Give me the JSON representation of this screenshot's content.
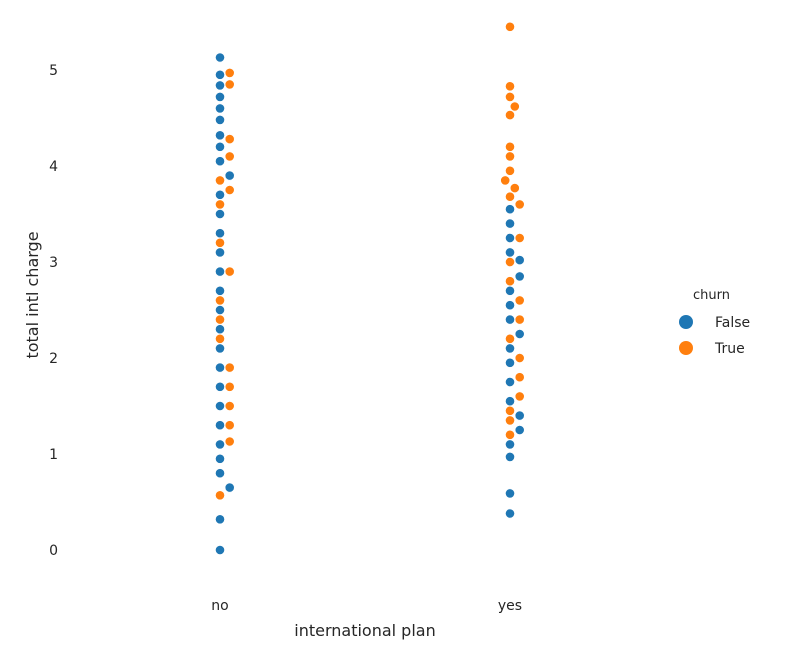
{
  "chart_data": {
    "type": "scatter",
    "subtype": "swarm",
    "title": "",
    "xlabel": "international plan",
    "ylabel": "total intl charge",
    "categories": [
      "no",
      "yes"
    ],
    "ylim": [
      -0.3,
      5.5
    ],
    "yticks": [
      0,
      1,
      2,
      3,
      4,
      5
    ],
    "grid": false,
    "legend": {
      "title": "churn",
      "placement": "right",
      "entries": [
        {
          "label": "False",
          "color": "#1f77b4"
        },
        {
          "label": "True",
          "color": "#ff7f0e"
        }
      ]
    },
    "series": [
      {
        "name": "False",
        "color": "#1f77b4",
        "points": [
          {
            "category": "no",
            "y": 5.13
          },
          {
            "category": "no",
            "y": 4.95
          },
          {
            "category": "no",
            "y": 4.84
          },
          {
            "category": "no",
            "y": 4.72
          },
          {
            "category": "no",
            "y": 4.6
          },
          {
            "category": "no",
            "y": 4.48
          },
          {
            "category": "no",
            "y": 4.32
          },
          {
            "category": "no",
            "y": 4.2
          },
          {
            "category": "no",
            "y": 4.05
          },
          {
            "category": "no",
            "y": 3.9
          },
          {
            "category": "no",
            "y": 3.7
          },
          {
            "category": "no",
            "y": 3.5
          },
          {
            "category": "no",
            "y": 3.3
          },
          {
            "category": "no",
            "y": 3.1
          },
          {
            "category": "no",
            "y": 2.9
          },
          {
            "category": "no",
            "y": 2.7
          },
          {
            "category": "no",
            "y": 2.5
          },
          {
            "category": "no",
            "y": 2.3
          },
          {
            "category": "no",
            "y": 2.1
          },
          {
            "category": "no",
            "y": 1.9
          },
          {
            "category": "no",
            "y": 1.7
          },
          {
            "category": "no",
            "y": 1.5
          },
          {
            "category": "no",
            "y": 1.3
          },
          {
            "category": "no",
            "y": 1.1
          },
          {
            "category": "no",
            "y": 0.95
          },
          {
            "category": "no",
            "y": 0.8
          },
          {
            "category": "no",
            "y": 0.65
          },
          {
            "category": "no",
            "y": 0.32
          },
          {
            "category": "no",
            "y": 0.0
          },
          {
            "category": "yes",
            "y": 3.55
          },
          {
            "category": "yes",
            "y": 3.4
          },
          {
            "category": "yes",
            "y": 3.25
          },
          {
            "category": "yes",
            "y": 3.1
          },
          {
            "category": "yes",
            "y": 3.02
          },
          {
            "category": "yes",
            "y": 2.85
          },
          {
            "category": "yes",
            "y": 2.7
          },
          {
            "category": "yes",
            "y": 2.55
          },
          {
            "category": "yes",
            "y": 2.4
          },
          {
            "category": "yes",
            "y": 2.25
          },
          {
            "category": "yes",
            "y": 2.1
          },
          {
            "category": "yes",
            "y": 1.95
          },
          {
            "category": "yes",
            "y": 1.75
          },
          {
            "category": "yes",
            "y": 1.55
          },
          {
            "category": "yes",
            "y": 1.4
          },
          {
            "category": "yes",
            "y": 1.25
          },
          {
            "category": "yes",
            "y": 1.1
          },
          {
            "category": "yes",
            "y": 0.97
          },
          {
            "category": "yes",
            "y": 0.59
          },
          {
            "category": "yes",
            "y": 0.38
          }
        ]
      },
      {
        "name": "True",
        "color": "#ff7f0e",
        "points": [
          {
            "category": "no",
            "y": 4.97
          },
          {
            "category": "no",
            "y": 4.85
          },
          {
            "category": "no",
            "y": 4.28
          },
          {
            "category": "no",
            "y": 4.1
          },
          {
            "category": "no",
            "y": 3.85
          },
          {
            "category": "no",
            "y": 3.75
          },
          {
            "category": "no",
            "y": 3.6
          },
          {
            "category": "no",
            "y": 3.2
          },
          {
            "category": "no",
            "y": 2.9
          },
          {
            "category": "no",
            "y": 2.6
          },
          {
            "category": "no",
            "y": 2.4
          },
          {
            "category": "no",
            "y": 2.2
          },
          {
            "category": "no",
            "y": 1.9
          },
          {
            "category": "no",
            "y": 1.7
          },
          {
            "category": "no",
            "y": 1.5
          },
          {
            "category": "no",
            "y": 1.3
          },
          {
            "category": "no",
            "y": 1.13
          },
          {
            "category": "no",
            "y": 0.57
          },
          {
            "category": "yes",
            "y": 5.45
          },
          {
            "category": "yes",
            "y": 4.83
          },
          {
            "category": "yes",
            "y": 4.72
          },
          {
            "category": "yes",
            "y": 4.62
          },
          {
            "category": "yes",
            "y": 4.53
          },
          {
            "category": "yes",
            "y": 4.2
          },
          {
            "category": "yes",
            "y": 4.1
          },
          {
            "category": "yes",
            "y": 3.95
          },
          {
            "category": "yes",
            "y": 3.85
          },
          {
            "category": "yes",
            "y": 3.77
          },
          {
            "category": "yes",
            "y": 3.68
          },
          {
            "category": "yes",
            "y": 3.6
          },
          {
            "category": "yes",
            "y": 3.25
          },
          {
            "category": "yes",
            "y": 3.0
          },
          {
            "category": "yes",
            "y": 2.8
          },
          {
            "category": "yes",
            "y": 2.6
          },
          {
            "category": "yes",
            "y": 2.4
          },
          {
            "category": "yes",
            "y": 2.2
          },
          {
            "category": "yes",
            "y": 2.0
          },
          {
            "category": "yes",
            "y": 1.8
          },
          {
            "category": "yes",
            "y": 1.6
          },
          {
            "category": "yes",
            "y": 1.45
          },
          {
            "category": "yes",
            "y": 1.35
          },
          {
            "category": "yes",
            "y": 1.2
          }
        ]
      }
    ]
  }
}
